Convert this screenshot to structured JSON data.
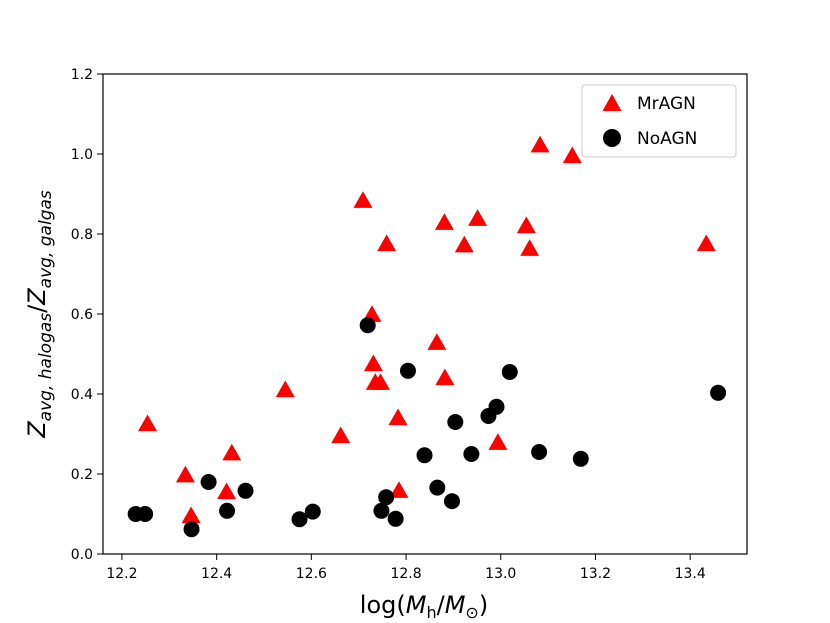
{
  "chart_data": {
    "type": "scatter",
    "title": "",
    "xlabel": "log(Mh/M☉)",
    "ylabel": "Zavg,halogas/Zavg,galgas",
    "xlim": [
      12.16,
      13.52
    ],
    "ylim": [
      0.0,
      1.2
    ],
    "xticks": [
      "12.2",
      "12.4",
      "12.6",
      "12.8",
      "13.0",
      "13.2",
      "13.4"
    ],
    "yticks": [
      "0.0",
      "0.2",
      "0.4",
      "0.6",
      "0.8",
      "1.0",
      "1.2"
    ],
    "grid": false,
    "legend_position": "top-right",
    "series": [
      {
        "name": "MrAGN",
        "marker": "triangle",
        "color": "#ff0000",
        "points": [
          [
            12.254,
            0.325
          ],
          [
            12.334,
            0.197
          ],
          [
            12.346,
            0.095
          ],
          [
            12.421,
            0.155
          ],
          [
            12.432,
            0.252
          ],
          [
            12.545,
            0.41
          ],
          [
            12.662,
            0.295
          ],
          [
            12.709,
            0.883
          ],
          [
            12.728,
            0.598
          ],
          [
            12.731,
            0.475
          ],
          [
            12.735,
            0.428
          ],
          [
            12.746,
            0.428
          ],
          [
            12.759,
            0.775
          ],
          [
            12.783,
            0.34
          ],
          [
            12.785,
            0.158
          ],
          [
            12.865,
            0.528
          ],
          [
            12.881,
            0.828
          ],
          [
            12.882,
            0.44
          ],
          [
            12.923,
            0.772
          ],
          [
            12.951,
            0.838
          ],
          [
            12.994,
            0.278
          ],
          [
            13.054,
            0.82
          ],
          [
            13.061,
            0.763
          ],
          [
            13.083,
            1.022
          ],
          [
            13.151,
            0.995
          ],
          [
            13.434,
            0.775
          ]
        ]
      },
      {
        "name": "NoAGN",
        "marker": "circle",
        "color": "#000000",
        "points": [
          [
            12.229,
            0.1
          ],
          [
            12.249,
            0.1
          ],
          [
            12.347,
            0.062
          ],
          [
            12.383,
            0.18
          ],
          [
            12.422,
            0.108
          ],
          [
            12.461,
            0.158
          ],
          [
            12.575,
            0.087
          ],
          [
            12.603,
            0.106
          ],
          [
            12.719,
            0.572
          ],
          [
            12.748,
            0.108
          ],
          [
            12.758,
            0.142
          ],
          [
            12.778,
            0.088
          ],
          [
            12.804,
            0.458
          ],
          [
            12.839,
            0.247
          ],
          [
            12.866,
            0.166
          ],
          [
            12.897,
            0.132
          ],
          [
            12.904,
            0.33
          ],
          [
            12.938,
            0.25
          ],
          [
            12.974,
            0.345
          ],
          [
            12.991,
            0.368
          ],
          [
            13.019,
            0.455
          ],
          [
            13.081,
            0.255
          ],
          [
            13.169,
            0.238
          ],
          [
            13.459,
            0.403
          ]
        ]
      }
    ]
  }
}
